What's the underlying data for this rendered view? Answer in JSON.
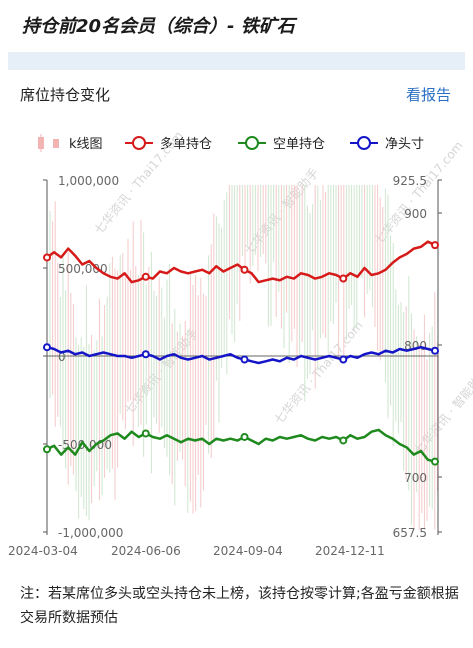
{
  "header": {
    "title": "持仓前20名会员（综合）- 铁矿石"
  },
  "section": {
    "title": "席位持仓变化",
    "report_link": "看报告"
  },
  "note": "注：若某席位多头或空头持仓未上榜，该持仓按零计算;各盈亏金额根据交易所数据预估",
  "colors": {
    "long": "#d61a1a",
    "short": "#1e8a1e",
    "net": "#1515c8",
    "kline": "#f2b3b3",
    "watermark": "#d6d6d6"
  },
  "chart_data": {
    "type": "line",
    "legend": [
      "k线图",
      "多单持仓",
      "空单持仓",
      "净头寸"
    ],
    "legend_position": "top",
    "x_ticks": [
      "2024-03-04",
      "2024-06-06",
      "2024-09-04",
      "2024-12-11"
    ],
    "y_left": {
      "ticks": [
        "1,000,000",
        "500,000",
        "0",
        "-500,000",
        "-1,000,000"
      ],
      "range": [
        -1000000,
        1000000
      ]
    },
    "y_right": {
      "ticks": [
        "925.5",
        "900",
        "800",
        "700",
        "657.5"
      ],
      "range": [
        657.5,
        925.5
      ]
    },
    "series": [
      {
        "name": "多单持仓",
        "values": [
          560000,
          590000,
          560000,
          610000,
          570000,
          520000,
          540000,
          500000,
          470000,
          450000,
          440000,
          470000,
          420000,
          430000,
          450000,
          440000,
          480000,
          470000,
          500000,
          480000,
          470000,
          480000,
          490000,
          470000,
          510000,
          480000,
          500000,
          520000,
          490000,
          470000,
          420000,
          430000,
          440000,
          430000,
          450000,
          440000,
          470000,
          460000,
          440000,
          450000,
          470000,
          460000,
          440000,
          470000,
          450000,
          500000,
          460000,
          470000,
          490000,
          530000,
          560000,
          580000,
          610000,
          620000,
          650000,
          630000
        ]
      },
      {
        "name": "空单持仓",
        "values": [
          -530000,
          -510000,
          -560000,
          -520000,
          -560000,
          -490000,
          -540000,
          -500000,
          -480000,
          -450000,
          -440000,
          -470000,
          -430000,
          -460000,
          -440000,
          -460000,
          -470000,
          -450000,
          -470000,
          -490000,
          -470000,
          -480000,
          -470000,
          -500000,
          -470000,
          -480000,
          -470000,
          -480000,
          -460000,
          -480000,
          -500000,
          -470000,
          -480000,
          -460000,
          -470000,
          -460000,
          -450000,
          -470000,
          -480000,
          -460000,
          -470000,
          -460000,
          -480000,
          -450000,
          -470000,
          -460000,
          -430000,
          -420000,
          -450000,
          -470000,
          -500000,
          -520000,
          -560000,
          -540000,
          -590000,
          -600000
        ]
      },
      {
        "name": "净头寸",
        "values": [
          50000,
          40000,
          20000,
          30000,
          10000,
          20000,
          0,
          10000,
          20000,
          10000,
          0,
          0,
          -10000,
          0,
          10000,
          0,
          -20000,
          0,
          10000,
          -10000,
          -20000,
          -10000,
          0,
          -20000,
          -10000,
          0,
          10000,
          -10000,
          -20000,
          -30000,
          -40000,
          -30000,
          -20000,
          -30000,
          -10000,
          -20000,
          0,
          -10000,
          -20000,
          -10000,
          0,
          -10000,
          -20000,
          0,
          -10000,
          10000,
          20000,
          10000,
          30000,
          20000,
          40000,
          30000,
          40000,
          50000,
          40000,
          30000
        ]
      }
    ]
  }
}
